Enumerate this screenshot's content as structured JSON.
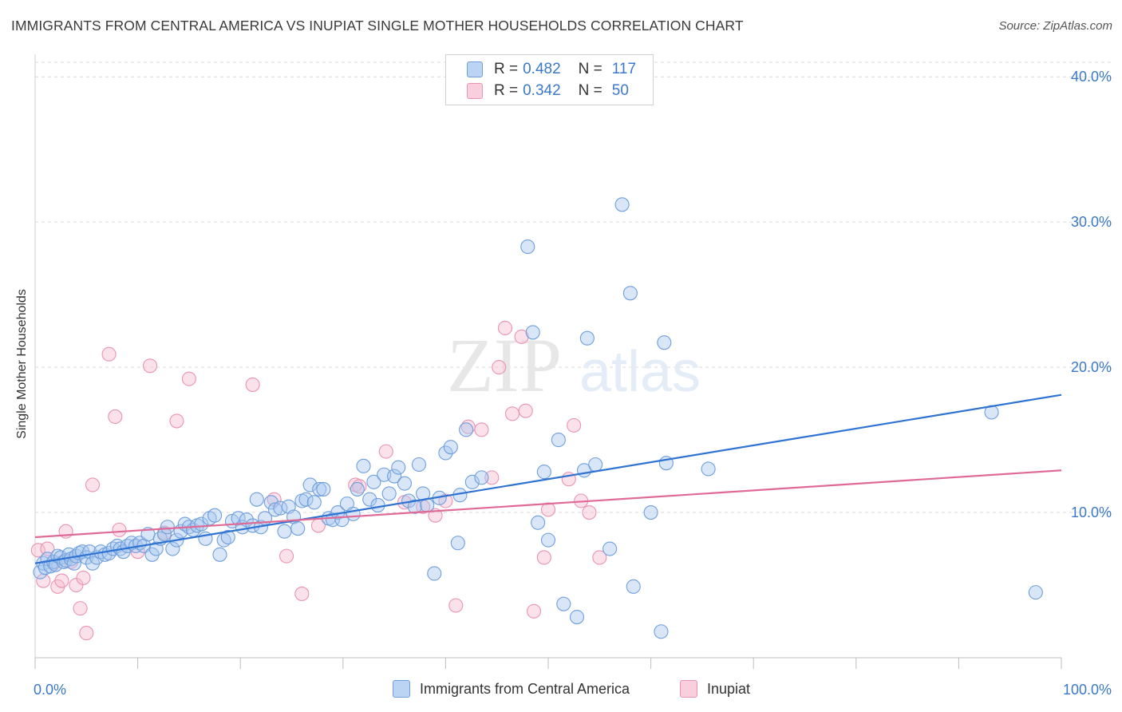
{
  "title": "IMMIGRANTS FROM CENTRAL AMERICA VS INUPIAT SINGLE MOTHER HOUSEHOLDS CORRELATION CHART",
  "source": "Source: ZipAtlas.com",
  "watermark": {
    "zip": "ZIP",
    "atlas": "atlas"
  },
  "colors": {
    "blue_fill": "#a9c8f0",
    "blue_stroke": "#6f9fdc",
    "blue_line": "#2f73d2",
    "pink_fill": "#f6bcd0",
    "pink_stroke": "#ea93b3",
    "pink_line": "#e06a96",
    "accent_text": "#3a78c9",
    "grid": "#d9d9d9"
  },
  "legend": {
    "rows": [
      {
        "r_label": "R =",
        "r_value": "0.482",
        "n_label": "N =",
        "n_value": "117"
      },
      {
        "r_label": "R =",
        "r_value": "0.342",
        "n_label": "N =",
        "n_value": "50"
      }
    ]
  },
  "bottom_legend": [
    "Immigrants from Central America",
    "Inupiat"
  ],
  "chart_data": {
    "type": "scatter",
    "title": "IMMIGRANTS FROM CENTRAL AMERICA VS INUPIAT SINGLE MOTHER HOUSEHOLDS CORRELATION CHART",
    "xlabel": "",
    "ylabel": "Single Mother Households",
    "xlim": [
      0,
      100
    ],
    "ylim": [
      0,
      41
    ],
    "x_tick_labels": [
      "0.0%",
      "100.0%"
    ],
    "y_ticks": [
      10,
      20,
      30,
      40
    ],
    "y_tick_labels": [
      "10.0%",
      "20.0%",
      "30.0%",
      "40.0%"
    ],
    "grid": true,
    "legend_position": "top-center",
    "series": [
      {
        "name": "Immigrants from Central America",
        "R": 0.482,
        "N": 117,
        "trend": [
          [
            0,
            6.5
          ],
          [
            100,
            18.1
          ]
        ],
        "points": [
          [
            0.5,
            5.9
          ],
          [
            0.8,
            6.5
          ],
          [
            1.0,
            6.2
          ],
          [
            1.2,
            6.8
          ],
          [
            1.5,
            6.3
          ],
          [
            1.8,
            6.6
          ],
          [
            2.0,
            6.4
          ],
          [
            2.2,
            7.0
          ],
          [
            2.5,
            6.9
          ],
          [
            2.8,
            6.6
          ],
          [
            3.0,
            6.7
          ],
          [
            3.3,
            7.1
          ],
          [
            3.5,
            6.8
          ],
          [
            3.8,
            6.5
          ],
          [
            4.0,
            7.0
          ],
          [
            4.3,
            7.2
          ],
          [
            4.6,
            7.3
          ],
          [
            5.0,
            6.9
          ],
          [
            5.3,
            7.3
          ],
          [
            5.6,
            6.5
          ],
          [
            6.0,
            6.9
          ],
          [
            6.4,
            7.3
          ],
          [
            6.8,
            7.1
          ],
          [
            7.2,
            7.2
          ],
          [
            7.6,
            7.5
          ],
          [
            8.0,
            7.7
          ],
          [
            8.3,
            7.5
          ],
          [
            8.6,
            7.3
          ],
          [
            9.0,
            7.7
          ],
          [
            9.4,
            7.9
          ],
          [
            9.8,
            7.7
          ],
          [
            10.2,
            7.9
          ],
          [
            10.6,
            7.7
          ],
          [
            11.0,
            8.5
          ],
          [
            11.4,
            7.1
          ],
          [
            11.8,
            7.5
          ],
          [
            12.2,
            8.2
          ],
          [
            12.6,
            8.5
          ],
          [
            12.9,
            9.0
          ],
          [
            13.4,
            7.5
          ],
          [
            13.8,
            8.1
          ],
          [
            14.2,
            8.7
          ],
          [
            14.6,
            9.2
          ],
          [
            15.0,
            9.0
          ],
          [
            15.4,
            8.8
          ],
          [
            15.8,
            9.1
          ],
          [
            16.2,
            9.2
          ],
          [
            16.6,
            8.2
          ],
          [
            17.0,
            9.6
          ],
          [
            17.5,
            9.8
          ],
          [
            18.0,
            7.1
          ],
          [
            18.4,
            8.1
          ],
          [
            18.8,
            8.3
          ],
          [
            19.2,
            9.4
          ],
          [
            19.8,
            9.6
          ],
          [
            20.2,
            9.0
          ],
          [
            20.6,
            9.5
          ],
          [
            21.2,
            9.1
          ],
          [
            21.6,
            10.9
          ],
          [
            22.0,
            9.0
          ],
          [
            22.4,
            9.6
          ],
          [
            23.0,
            10.7
          ],
          [
            23.4,
            10.2
          ],
          [
            23.9,
            10.3
          ],
          [
            24.3,
            8.7
          ],
          [
            24.7,
            10.4
          ],
          [
            25.2,
            9.7
          ],
          [
            25.6,
            8.9
          ],
          [
            26.0,
            10.8
          ],
          [
            26.4,
            10.9
          ],
          [
            26.8,
            11.9
          ],
          [
            27.2,
            10.7
          ],
          [
            27.7,
            11.6
          ],
          [
            28.1,
            11.6
          ],
          [
            28.6,
            9.6
          ],
          [
            29.0,
            9.5
          ],
          [
            29.5,
            10.0
          ],
          [
            29.9,
            9.5
          ],
          [
            30.4,
            10.6
          ],
          [
            31.0,
            9.9
          ],
          [
            31.4,
            11.6
          ],
          [
            32.0,
            13.2
          ],
          [
            32.6,
            10.9
          ],
          [
            33.0,
            12.1
          ],
          [
            33.4,
            10.5
          ],
          [
            34.0,
            12.6
          ],
          [
            34.5,
            11.3
          ],
          [
            35.0,
            12.5
          ],
          [
            35.4,
            13.1
          ],
          [
            36.0,
            12.0
          ],
          [
            36.4,
            10.8
          ],
          [
            37.0,
            10.4
          ],
          [
            37.4,
            13.3
          ],
          [
            37.8,
            11.3
          ],
          [
            38.2,
            10.5
          ],
          [
            38.9,
            5.8
          ],
          [
            39.4,
            11.0
          ],
          [
            40.0,
            14.1
          ],
          [
            40.5,
            14.5
          ],
          [
            41.2,
            7.9
          ],
          [
            41.4,
            11.2
          ],
          [
            42.0,
            15.7
          ],
          [
            42.6,
            12.1
          ],
          [
            43.5,
            12.4
          ],
          [
            48.0,
            28.3
          ],
          [
            48.5,
            22.4
          ],
          [
            49.0,
            9.3
          ],
          [
            49.6,
            12.8
          ],
          [
            50.0,
            8.1
          ],
          [
            51.0,
            15.0
          ],
          [
            51.5,
            3.7
          ],
          [
            52.8,
            2.8
          ],
          [
            53.5,
            12.9
          ],
          [
            53.8,
            22.0
          ],
          [
            54.6,
            13.3
          ],
          [
            56.0,
            7.5
          ],
          [
            57.2,
            31.2
          ],
          [
            58.0,
            25.1
          ],
          [
            58.3,
            4.9
          ],
          [
            60.0,
            10.0
          ],
          [
            61.0,
            1.8
          ],
          [
            61.3,
            21.7
          ],
          [
            61.5,
            13.4
          ],
          [
            65.6,
            13.0
          ],
          [
            93.2,
            16.9
          ],
          [
            97.5,
            4.5
          ]
        ]
      },
      {
        "name": "Inupiat",
        "R": 0.342,
        "N": 50,
        "trend": [
          [
            0,
            8.3
          ],
          [
            100,
            12.9
          ]
        ],
        "points": [
          [
            0.3,
            7.4
          ],
          [
            0.8,
            5.3
          ],
          [
            1.2,
            7.5
          ],
          [
            1.8,
            6.5
          ],
          [
            2.2,
            4.9
          ],
          [
            2.6,
            5.3
          ],
          [
            3.0,
            8.7
          ],
          [
            3.5,
            6.6
          ],
          [
            4.0,
            5.0
          ],
          [
            4.4,
            3.4
          ],
          [
            4.7,
            5.5
          ],
          [
            5.0,
            1.7
          ],
          [
            5.6,
            11.9
          ],
          [
            7.2,
            20.9
          ],
          [
            7.8,
            16.6
          ],
          [
            8.2,
            8.8
          ],
          [
            10.0,
            7.3
          ],
          [
            11.2,
            20.1
          ],
          [
            12.6,
            8.6
          ],
          [
            13.8,
            16.3
          ],
          [
            15.0,
            19.2
          ],
          [
            21.2,
            18.8
          ],
          [
            23.3,
            10.9
          ],
          [
            24.5,
            7.0
          ],
          [
            26.0,
            4.4
          ],
          [
            27.6,
            9.1
          ],
          [
            31.2,
            11.9
          ],
          [
            31.6,
            11.8
          ],
          [
            34.2,
            14.2
          ],
          [
            36.0,
            10.7
          ],
          [
            37.8,
            10.4
          ],
          [
            39.0,
            9.8
          ],
          [
            40.0,
            10.8
          ],
          [
            41.0,
            3.6
          ],
          [
            42.2,
            15.9
          ],
          [
            43.5,
            15.7
          ],
          [
            44.5,
            12.4
          ],
          [
            45.2,
            20.0
          ],
          [
            45.8,
            22.7
          ],
          [
            46.5,
            16.8
          ],
          [
            47.4,
            22.1
          ],
          [
            47.8,
            17.0
          ],
          [
            48.6,
            3.2
          ],
          [
            49.6,
            6.9
          ],
          [
            50.0,
            10.2
          ],
          [
            52.0,
            12.3
          ],
          [
            52.5,
            16.0
          ],
          [
            53.2,
            10.8
          ],
          [
            54.0,
            10.0
          ],
          [
            55.0,
            6.9
          ]
        ]
      }
    ]
  }
}
